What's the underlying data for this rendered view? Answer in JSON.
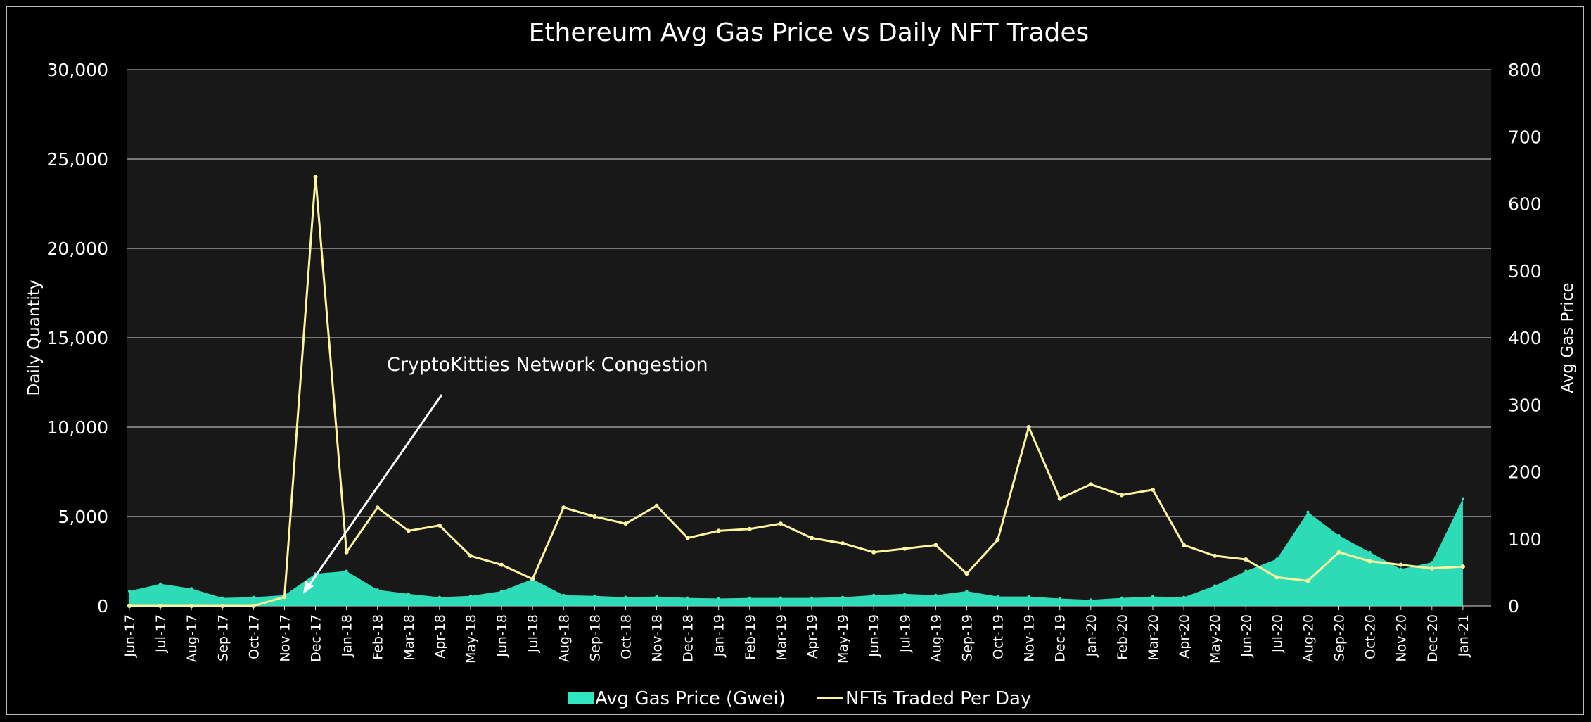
{
  "chart_data": {
    "type": "line",
    "title": "Ethereum Avg Gas Price vs Daily NFT Trades",
    "ylabel_left": "Daily Quantity",
    "ylabel_right": "Avg Gas Price",
    "y_left_range": [
      0,
      30000
    ],
    "y_right_range": [
      0,
      800
    ],
    "y_left_ticks": [
      "0",
      "5,000",
      "10,000",
      "15,000",
      "20,000",
      "25,000",
      "30,000"
    ],
    "y_right_ticks": [
      "0",
      "100",
      "200",
      "300",
      "400",
      "500",
      "600",
      "700",
      "800"
    ],
    "x_ticks": [
      "Jun-17",
      "Jul-17",
      "Aug-17",
      "Sep-17",
      "Oct-17",
      "Nov-17",
      "Dec-17",
      "Jan-18",
      "Feb-18",
      "Mar-18",
      "Apr-18",
      "May-18",
      "Jun-18",
      "Jul-18",
      "Aug-18",
      "Sep-18",
      "Oct-18",
      "Nov-18",
      "Dec-18",
      "Jan-19",
      "Feb-19",
      "Mar-19",
      "Apr-19",
      "May-19",
      "Jun-19",
      "Jul-19",
      "Aug-19",
      "Sep-19",
      "Oct-19",
      "Nov-19",
      "Dec-19",
      "Jan-20",
      "Feb-20",
      "Mar-20",
      "Apr-20",
      "May-20",
      "Jun-20",
      "Jul-20",
      "Aug-20",
      "Sep-20",
      "Oct-20",
      "Nov-20",
      "Dec-20",
      "Jan-21"
    ],
    "grid": true,
    "legend_position": "bottom-center",
    "annotation": "CryptoKitties Network Congestion",
    "series": [
      {
        "name": "Avg Gas Price (Gwei)",
        "kind": "area",
        "axis": "right",
        "color": "#2fe6c0",
        "points": [
          [
            "Jun-17",
            22
          ],
          [
            "Jul-17",
            33
          ],
          [
            "Aug-17",
            26
          ],
          [
            "Sep-17",
            12
          ],
          [
            "Oct-17",
            13
          ],
          [
            "Nov-17",
            16
          ],
          [
            "Dec-17",
            48
          ],
          [
            "Jan-18",
            52
          ],
          [
            "Feb-18",
            24
          ],
          [
            "Mar-18",
            18
          ],
          [
            "Apr-18",
            13
          ],
          [
            "May-18",
            15
          ],
          [
            "Jun-18",
            22
          ],
          [
            "Jul-18",
            40
          ],
          [
            "Aug-18",
            16
          ],
          [
            "Sep-18",
            15
          ],
          [
            "Oct-18",
            13
          ],
          [
            "Nov-18",
            14
          ],
          [
            "Dec-18",
            12
          ],
          [
            "Jan-19",
            11
          ],
          [
            "Feb-19",
            12
          ],
          [
            "Mar-19",
            12
          ],
          [
            "Apr-19",
            12
          ],
          [
            "May-19",
            13
          ],
          [
            "Jun-19",
            16
          ],
          [
            "Jul-19",
            18
          ],
          [
            "Aug-19",
            16
          ],
          [
            "Sep-19",
            22
          ],
          [
            "Oct-19",
            14
          ],
          [
            "Nov-19",
            14
          ],
          [
            "Dec-19",
            11
          ],
          [
            "Jan-20",
            9
          ],
          [
            "Feb-20",
            12
          ],
          [
            "Mar-20",
            14
          ],
          [
            "Apr-20",
            13
          ],
          [
            "May-20",
            30
          ],
          [
            "Jun-20",
            52
          ],
          [
            "Jul-20",
            70
          ],
          [
            "Aug-20",
            140
          ],
          [
            "Sep-20",
            105
          ],
          [
            "Oct-20",
            80
          ],
          [
            "Nov-20",
            55
          ],
          [
            "Dec-20",
            65
          ],
          [
            "Jan-21",
            160
          ]
        ]
      },
      {
        "name": "NFTs Traded Per Day",
        "kind": "line",
        "axis": "left",
        "color": "#fdf59b",
        "points": [
          [
            "Jun-17",
            0
          ],
          [
            "Jul-17",
            0
          ],
          [
            "Aug-17",
            0
          ],
          [
            "Sep-17",
            0
          ],
          [
            "Oct-17",
            0
          ],
          [
            "Nov-17",
            500
          ],
          [
            "Dec-17",
            24000
          ],
          [
            "Jan-18",
            3000
          ],
          [
            "Feb-18",
            5500
          ],
          [
            "Mar-18",
            4200
          ],
          [
            "Apr-18",
            4500
          ],
          [
            "May-18",
            2800
          ],
          [
            "Jun-18",
            2300
          ],
          [
            "Jul-18",
            1500
          ],
          [
            "Aug-18",
            5500
          ],
          [
            "Sep-18",
            5000
          ],
          [
            "Oct-18",
            4600
          ],
          [
            "Nov-18",
            5600
          ],
          [
            "Dec-18",
            3800
          ],
          [
            "Jan-19",
            4200
          ],
          [
            "Feb-19",
            4300
          ],
          [
            "Mar-19",
            4600
          ],
          [
            "Apr-19",
            3800
          ],
          [
            "May-19",
            3500
          ],
          [
            "Jun-19",
            3000
          ],
          [
            "Jul-19",
            3200
          ],
          [
            "Aug-19",
            3400
          ],
          [
            "Sep-19",
            1800
          ],
          [
            "Oct-19",
            3700
          ],
          [
            "Nov-19",
            10000
          ],
          [
            "Dec-19",
            6000
          ],
          [
            "Jan-20",
            6800
          ],
          [
            "Feb-20",
            6200
          ],
          [
            "Mar-20",
            6500
          ],
          [
            "Apr-20",
            3400
          ],
          [
            "May-20",
            2800
          ],
          [
            "Jun-20",
            2600
          ],
          [
            "Jul-20",
            1600
          ],
          [
            "Aug-20",
            1400
          ],
          [
            "Sep-20",
            3000
          ],
          [
            "Oct-20",
            2500
          ],
          [
            "Nov-20",
            2300
          ],
          [
            "Dec-20",
            2100
          ],
          [
            "Jan-21",
            2200
          ]
        ]
      }
    ]
  }
}
